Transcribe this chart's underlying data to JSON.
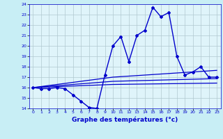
{
  "title": "",
  "xlabel": "Graphe des températures (°c)",
  "background_color": "#c8eef5",
  "plot_background": "#dff4fa",
  "grid_color": "#b0c8d0",
  "line_color": "#0000cc",
  "xlim": [
    -0.5,
    23.5
  ],
  "ylim": [
    14,
    24
  ],
  "yticks": [
    14,
    15,
    16,
    17,
    18,
    19,
    20,
    21,
    22,
    23,
    24
  ],
  "xticks": [
    0,
    1,
    2,
    3,
    4,
    5,
    6,
    7,
    8,
    9,
    10,
    11,
    12,
    13,
    14,
    15,
    16,
    17,
    18,
    19,
    20,
    21,
    22,
    23
  ],
  "main_line": [
    16.0,
    15.9,
    15.9,
    16.0,
    15.9,
    15.3,
    14.7,
    14.1,
    14.0,
    17.2,
    20.0,
    20.9,
    18.5,
    21.0,
    21.5,
    23.7,
    22.8,
    23.2,
    19.0,
    17.2,
    17.5,
    18.0,
    17.0,
    17.0
  ],
  "trend_line1": [
    16.0,
    16.1,
    16.2,
    16.3,
    16.4,
    16.5,
    16.6,
    16.7,
    16.8,
    16.9,
    17.0,
    17.05,
    17.1,
    17.15,
    17.2,
    17.25,
    17.3,
    17.35,
    17.4,
    17.45,
    17.5,
    17.55,
    17.6,
    17.65
  ],
  "trend_line2": [
    16.0,
    16.06,
    16.12,
    16.18,
    16.24,
    16.3,
    16.36,
    16.42,
    16.48,
    16.54,
    16.6,
    16.62,
    16.64,
    16.66,
    16.68,
    16.7,
    16.72,
    16.74,
    16.76,
    16.78,
    16.8,
    16.82,
    16.84,
    16.86
  ],
  "trend_line3": [
    16.0,
    16.03,
    16.06,
    16.09,
    16.12,
    16.15,
    16.18,
    16.21,
    16.24,
    16.27,
    16.3,
    16.31,
    16.32,
    16.33,
    16.34,
    16.35,
    16.36,
    16.37,
    16.38,
    16.39,
    16.4,
    16.41,
    16.42,
    16.43
  ]
}
